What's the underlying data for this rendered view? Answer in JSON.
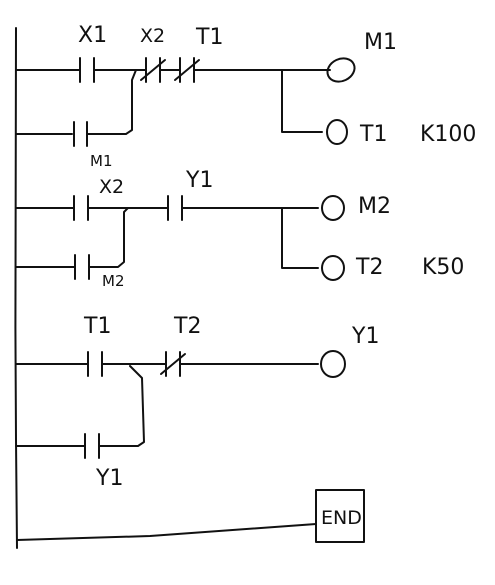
{
  "diagram": {
    "kind": "ladder",
    "rungs": [
      {
        "contacts": [
          {
            "label": "X1",
            "type": "NO"
          },
          {
            "label": "X2",
            "type": "NC"
          },
          {
            "label": "T1",
            "type": "NC"
          }
        ],
        "parallel_contact": {
          "label": "M1",
          "type": "NO"
        },
        "outputs": [
          {
            "label": "M1",
            "setting": ""
          },
          {
            "label": "T1",
            "setting": "K100"
          }
        ]
      },
      {
        "contacts": [
          {
            "label": "X2",
            "type": "NO"
          },
          {
            "label": "Y1",
            "type": "NO"
          }
        ],
        "parallel_contact": {
          "label": "M2",
          "type": "NO"
        },
        "outputs": [
          {
            "label": "M2",
            "setting": ""
          },
          {
            "label": "T2",
            "setting": "K50"
          }
        ]
      },
      {
        "contacts": [
          {
            "label": "T1",
            "type": "NO"
          },
          {
            "label": "T2",
            "type": "NC"
          }
        ],
        "parallel_contact": {
          "label": "Y1",
          "type": "NO"
        },
        "outputs": [
          {
            "label": "Y1",
            "setting": ""
          }
        ]
      }
    ],
    "end_label": "END"
  }
}
